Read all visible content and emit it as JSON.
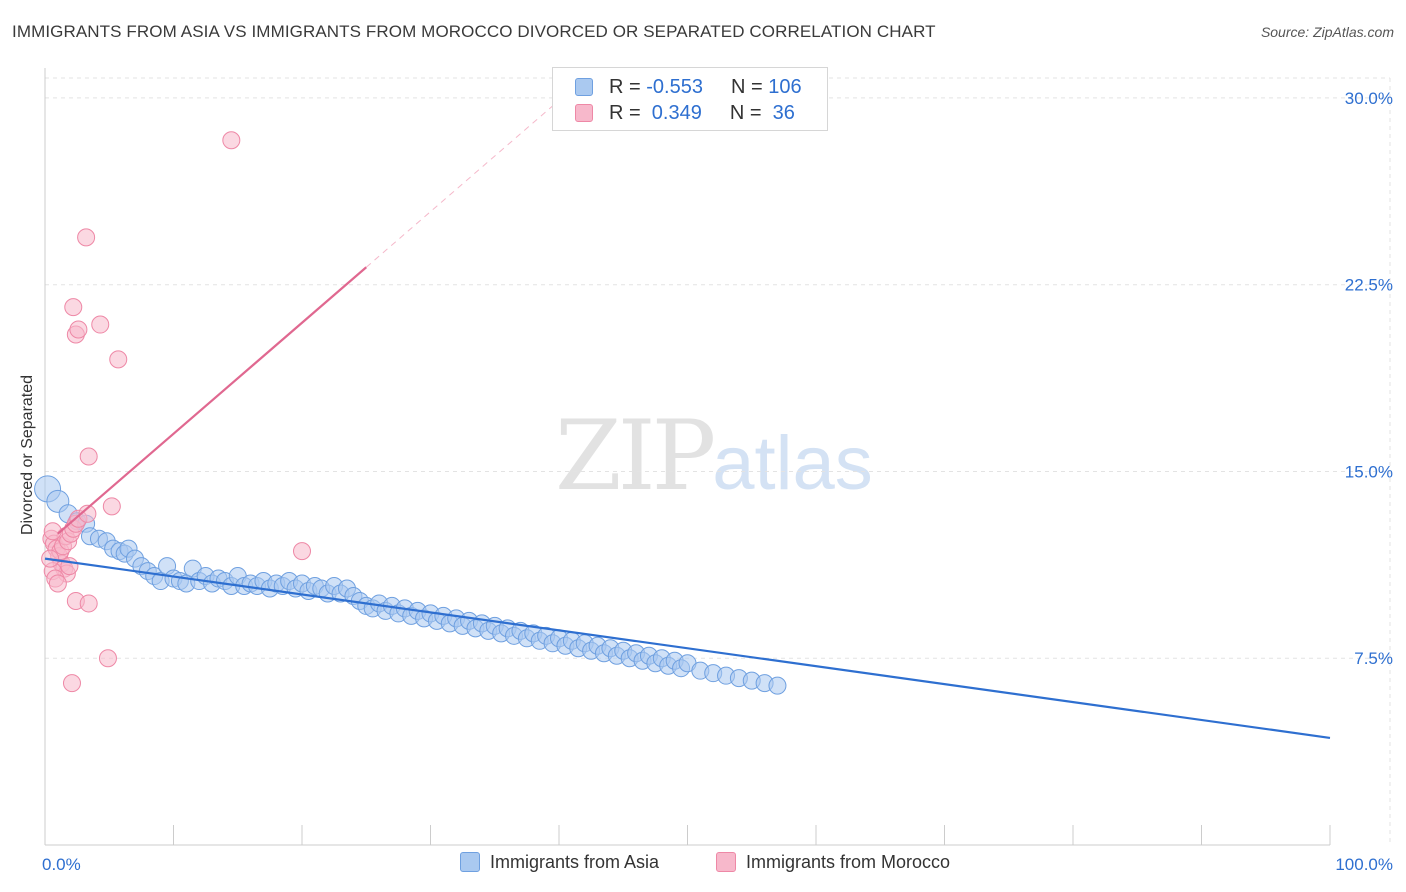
{
  "header": {
    "title": "IMMIGRANTS FROM ASIA VS IMMIGRANTS FROM MOROCCO DIVORCED OR SEPARATED CORRELATION CHART",
    "source": "Source: ZipAtlas.com"
  },
  "watermark": {
    "zip": "ZIP",
    "atlas": "atlas"
  },
  "legend": {
    "rows": [
      {
        "r_label": "R = ",
        "r_value": "-0.553",
        "n_label": "N = ",
        "n_value": "106"
      },
      {
        "r_label": "R = ",
        "r_value": " 0.349",
        "n_label": "N = ",
        "n_value": " 36"
      }
    ]
  },
  "colors": {
    "asia_fill": "#aac9f0",
    "asia_stroke": "#6fa0e0",
    "asia_line": "#2e6fd0",
    "morocco_fill": "#f7b8cb",
    "morocco_stroke": "#ee88a6",
    "morocco_line": "#e06890",
    "grid": "#e3e3e3",
    "tick_label": "#2e6fd0"
  },
  "chart_data": {
    "type": "scatter",
    "title": "IMMIGRANTS FROM ASIA VS IMMIGRANTS FROM MOROCCO DIVORCED OR SEPARATED CORRELATION CHART",
    "xlabel": "",
    "ylabel": "Divorced or Separated",
    "xlim": [
      0,
      100
    ],
    "ylim": [
      0,
      30.8
    ],
    "x_tick_labels": [
      "0.0%",
      "100.0%"
    ],
    "y_ticks": [
      7.5,
      15.0,
      22.5,
      30.0
    ],
    "y_tick_labels": [
      "7.5%",
      "15.0%",
      "22.5%",
      "30.0%"
    ],
    "grid": true,
    "legend_position": "bottom",
    "series": [
      {
        "name": "Immigrants from Asia",
        "r": -0.553,
        "n": 106,
        "trend": {
          "x": [
            0,
            100
          ],
          "y": [
            11.5,
            4.3
          ]
        },
        "points": [
          [
            0.2,
            14.3
          ],
          [
            1.0,
            13.8
          ],
          [
            1.8,
            13.3
          ],
          [
            2.5,
            13.0
          ],
          [
            3.2,
            12.9
          ],
          [
            3.5,
            12.4
          ],
          [
            4.2,
            12.3
          ],
          [
            4.8,
            12.2
          ],
          [
            5.3,
            11.9
          ],
          [
            5.8,
            11.8
          ],
          [
            6.2,
            11.7
          ],
          [
            6.5,
            11.9
          ],
          [
            7.0,
            11.5
          ],
          [
            7.5,
            11.2
          ],
          [
            8.0,
            11.0
          ],
          [
            8.5,
            10.8
          ],
          [
            9.0,
            10.6
          ],
          [
            9.5,
            11.2
          ],
          [
            10.0,
            10.7
          ],
          [
            10.5,
            10.6
          ],
          [
            11.0,
            10.5
          ],
          [
            11.5,
            11.1
          ],
          [
            12.0,
            10.6
          ],
          [
            12.5,
            10.8
          ],
          [
            13.0,
            10.5
          ],
          [
            13.5,
            10.7
          ],
          [
            14.0,
            10.6
          ],
          [
            14.5,
            10.4
          ],
          [
            15.0,
            10.8
          ],
          [
            15.5,
            10.4
          ],
          [
            16.0,
            10.5
          ],
          [
            16.5,
            10.4
          ],
          [
            17.0,
            10.6
          ],
          [
            17.5,
            10.3
          ],
          [
            18.0,
            10.5
          ],
          [
            18.5,
            10.4
          ],
          [
            19.0,
            10.6
          ],
          [
            19.5,
            10.3
          ],
          [
            20.0,
            10.5
          ],
          [
            20.5,
            10.2
          ],
          [
            21.0,
            10.4
          ],
          [
            21.5,
            10.3
          ],
          [
            22.0,
            10.1
          ],
          [
            22.5,
            10.4
          ],
          [
            23.0,
            10.1
          ],
          [
            23.5,
            10.3
          ],
          [
            24.0,
            10.0
          ],
          [
            24.5,
            9.8
          ],
          [
            25.0,
            9.6
          ],
          [
            25.5,
            9.5
          ],
          [
            26.0,
            9.7
          ],
          [
            26.5,
            9.4
          ],
          [
            27.0,
            9.6
          ],
          [
            27.5,
            9.3
          ],
          [
            28.0,
            9.5
          ],
          [
            28.5,
            9.2
          ],
          [
            29.0,
            9.4
          ],
          [
            29.5,
            9.1
          ],
          [
            30.0,
            9.3
          ],
          [
            30.5,
            9.0
          ],
          [
            31.0,
            9.2
          ],
          [
            31.5,
            8.9
          ],
          [
            32.0,
            9.1
          ],
          [
            32.5,
            8.8
          ],
          [
            33.0,
            9.0
          ],
          [
            33.5,
            8.7
          ],
          [
            34.0,
            8.9
          ],
          [
            34.5,
            8.6
          ],
          [
            35.0,
            8.8
          ],
          [
            35.5,
            8.5
          ],
          [
            36.0,
            8.7
          ],
          [
            36.5,
            8.4
          ],
          [
            37.0,
            8.6
          ],
          [
            37.5,
            8.3
          ],
          [
            38.0,
            8.5
          ],
          [
            38.5,
            8.2
          ],
          [
            39.0,
            8.4
          ],
          [
            39.5,
            8.1
          ],
          [
            40.0,
            8.3
          ],
          [
            40.5,
            8.0
          ],
          [
            41.0,
            8.2
          ],
          [
            41.5,
            7.9
          ],
          [
            42.0,
            8.1
          ],
          [
            42.5,
            7.8
          ],
          [
            43.0,
            8.0
          ],
          [
            43.5,
            7.7
          ],
          [
            44.0,
            7.9
          ],
          [
            44.5,
            7.6
          ],
          [
            45.0,
            7.8
          ],
          [
            45.5,
            7.5
          ],
          [
            46.0,
            7.7
          ],
          [
            46.5,
            7.4
          ],
          [
            47.0,
            7.6
          ],
          [
            47.5,
            7.3
          ],
          [
            48.0,
            7.5
          ],
          [
            48.5,
            7.2
          ],
          [
            49.0,
            7.4
          ],
          [
            49.5,
            7.1
          ],
          [
            50.0,
            7.3
          ],
          [
            51.0,
            7.0
          ],
          [
            52.0,
            6.9
          ],
          [
            53.0,
            6.8
          ],
          [
            54.0,
            6.7
          ],
          [
            55.0,
            6.6
          ],
          [
            56.0,
            6.5
          ],
          [
            57.0,
            6.4
          ]
        ]
      },
      {
        "name": "Immigrants from Morocco",
        "r": 0.349,
        "n": 36,
        "trend": {
          "x": [
            1.0,
            25.0
          ],
          "y": [
            12.5,
            23.2
          ]
        },
        "trend_ext": {
          "x": [
            25.0,
            40.0
          ],
          "y": [
            23.2,
            29.9
          ]
        },
        "points": [
          [
            0.5,
            12.3
          ],
          [
            0.7,
            12.1
          ],
          [
            0.9,
            11.9
          ],
          [
            1.1,
            11.6
          ],
          [
            1.3,
            11.3
          ],
          [
            1.5,
            11.1
          ],
          [
            1.7,
            10.9
          ],
          [
            0.6,
            11.0
          ],
          [
            0.8,
            10.7
          ],
          [
            1.0,
            10.5
          ],
          [
            1.2,
            11.8
          ],
          [
            1.4,
            12.0
          ],
          [
            1.6,
            12.4
          ],
          [
            1.8,
            12.2
          ],
          [
            2.0,
            12.5
          ],
          [
            2.2,
            12.7
          ],
          [
            2.4,
            12.9
          ],
          [
            2.6,
            13.1
          ],
          [
            0.4,
            11.5
          ],
          [
            0.6,
            12.6
          ],
          [
            2.2,
            21.6
          ],
          [
            2.4,
            20.5
          ],
          [
            2.6,
            20.7
          ],
          [
            3.2,
            24.4
          ],
          [
            4.3,
            20.9
          ],
          [
            5.7,
            19.5
          ],
          [
            3.4,
            15.6
          ],
          [
            5.2,
            13.6
          ],
          [
            3.3,
            13.3
          ],
          [
            2.4,
            9.8
          ],
          [
            3.4,
            9.7
          ],
          [
            4.9,
            7.5
          ],
          [
            2.1,
            6.5
          ],
          [
            20.0,
            11.8
          ],
          [
            14.5,
            28.3
          ],
          [
            1.9,
            11.2
          ]
        ]
      }
    ]
  },
  "bottom_legend": {
    "items": [
      "Immigrants from Asia",
      "Immigrants from Morocco"
    ]
  }
}
